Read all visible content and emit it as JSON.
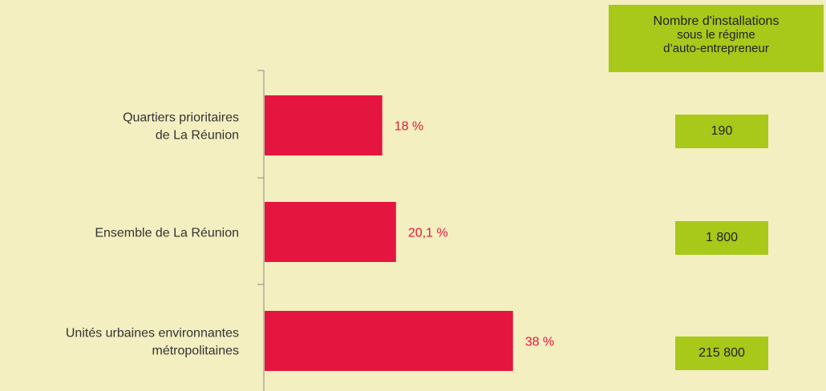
{
  "chart_data": {
    "type": "bar",
    "orientation": "horizontal",
    "categories": [
      [
        "Quartiers prioritaires",
        "de La Réunion"
      ],
      [
        "Ensemble de La Réunion"
      ],
      [
        "Unités urbaines environnantes",
        "métropolitaines"
      ]
    ],
    "values": [
      18,
      20.1,
      38
    ],
    "value_labels": [
      "18 %",
      "20,1 %",
      "38 %"
    ],
    "unit": "%",
    "xlim": [
      0,
      80
    ],
    "grid": false,
    "bar_color": "#e4163f",
    "value_label_color": "#e4163f"
  },
  "side_table": {
    "header": [
      "Nombre d'installations",
      "sous le régime",
      "d’auto-entrepreneur"
    ],
    "values": [
      "190",
      "1 800",
      "215 800"
    ],
    "box_color": "#a8c81a"
  },
  "background_color": "#f3efc0"
}
